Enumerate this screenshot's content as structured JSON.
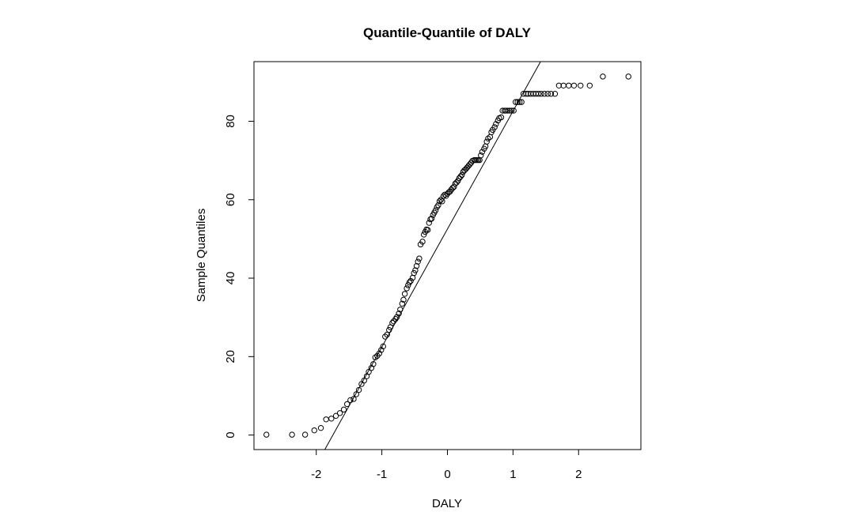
{
  "chart_data": {
    "type": "scatter",
    "title": "Quantile-Quantile of DALY",
    "xlabel": "DALY",
    "ylabel": "Sample Quantiles",
    "xlim": [
      -2.95,
      2.95
    ],
    "ylim": [
      -3.7,
      95.2
    ],
    "xticks": [
      -2,
      -1,
      0,
      1,
      2
    ],
    "xtick_labels": [
      "-2",
      "-1",
      "0",
      "1",
      "2"
    ],
    "yticks": [
      0,
      20,
      40,
      60,
      80
    ],
    "ytick_labels": [
      "0",
      "20",
      "40",
      "60",
      "80"
    ],
    "grid": false,
    "reference_line": {
      "x": [
        -1.87,
        1.42
      ],
      "y": [
        -3.7,
        95.2
      ]
    },
    "series": [
      {
        "marker": "open-circle",
        "color": "#000000",
        "points": [
          [
            -2.76,
            0.1
          ],
          [
            -2.37,
            0.1
          ],
          [
            -2.17,
            0.1
          ],
          [
            -2.03,
            1.2
          ],
          [
            -1.93,
            1.8
          ],
          [
            -1.85,
            4.0
          ],
          [
            -1.77,
            4.2
          ],
          [
            -1.7,
            4.9
          ],
          [
            -1.64,
            5.6
          ],
          [
            -1.58,
            6.5
          ],
          [
            -1.53,
            7.9
          ],
          [
            -1.48,
            8.9
          ],
          [
            -1.43,
            9.2
          ],
          [
            -1.39,
            10.4
          ],
          [
            -1.35,
            11.5
          ],
          [
            -1.31,
            13.0
          ],
          [
            -1.27,
            13.9
          ],
          [
            -1.23,
            15.0
          ],
          [
            -1.2,
            16.1
          ],
          [
            -1.16,
            17.1
          ],
          [
            -1.13,
            18.1
          ],
          [
            -1.1,
            19.8
          ],
          [
            -1.07,
            20.2
          ],
          [
            -1.04,
            20.8
          ],
          [
            -1.01,
            21.7
          ],
          [
            -0.98,
            22.6
          ],
          [
            -0.95,
            25.1
          ],
          [
            -0.92,
            25.6
          ],
          [
            -0.89,
            26.8
          ],
          [
            -0.87,
            27.5
          ],
          [
            -0.84,
            28.6
          ],
          [
            -0.82,
            29.0
          ],
          [
            -0.79,
            29.6
          ],
          [
            -0.77,
            30.1
          ],
          [
            -0.74,
            31.0
          ],
          [
            -0.72,
            32.0
          ],
          [
            -0.69,
            33.5
          ],
          [
            -0.67,
            34.5
          ],
          [
            -0.65,
            36.0
          ],
          [
            -0.62,
            37.4
          ],
          [
            -0.6,
            38.2
          ],
          [
            -0.58,
            38.9
          ],
          [
            -0.56,
            39.3
          ],
          [
            -0.53,
            40.1
          ],
          [
            -0.51,
            41.3
          ],
          [
            -0.49,
            42.0
          ],
          [
            -0.47,
            43.1
          ],
          [
            -0.45,
            44.2
          ],
          [
            -0.43,
            45.0
          ],
          [
            -0.41,
            48.6
          ],
          [
            -0.38,
            49.3
          ],
          [
            -0.36,
            51.1
          ],
          [
            -0.34,
            51.8
          ],
          [
            -0.32,
            52.4
          ],
          [
            -0.3,
            52.3
          ],
          [
            -0.28,
            54.1
          ],
          [
            -0.26,
            55.0
          ],
          [
            -0.24,
            55.2
          ],
          [
            -0.22,
            56.1
          ],
          [
            -0.2,
            56.7
          ],
          [
            -0.18,
            57.3
          ],
          [
            -0.16,
            58.1
          ],
          [
            -0.14,
            58.6
          ],
          [
            -0.12,
            59.6
          ],
          [
            -0.1,
            60.0
          ],
          [
            -0.08,
            59.6
          ],
          [
            -0.06,
            60.9
          ],
          [
            -0.04,
            61.3
          ],
          [
            -0.02,
            61.0
          ],
          [
            0.0,
            61.5
          ],
          [
            0.02,
            61.9
          ],
          [
            0.04,
            62.1
          ],
          [
            0.06,
            62.6
          ],
          [
            0.08,
            63.0
          ],
          [
            0.1,
            63.3
          ],
          [
            0.12,
            64.1
          ],
          [
            0.14,
            64.4
          ],
          [
            0.16,
            64.8
          ],
          [
            0.18,
            65.5
          ],
          [
            0.2,
            65.9
          ],
          [
            0.22,
            66.3
          ],
          [
            0.24,
            67.1
          ],
          [
            0.26,
            67.5
          ],
          [
            0.28,
            67.8
          ],
          [
            0.3,
            68.2
          ],
          [
            0.32,
            68.6
          ],
          [
            0.34,
            69.0
          ],
          [
            0.36,
            69.4
          ],
          [
            0.38,
            69.9
          ],
          [
            0.41,
            70.1
          ],
          [
            0.43,
            70.1
          ],
          [
            0.45,
            70.1
          ],
          [
            0.47,
            70.1
          ],
          [
            0.49,
            70.1
          ],
          [
            0.51,
            71.3
          ],
          [
            0.53,
            72.2
          ],
          [
            0.56,
            73.0
          ],
          [
            0.58,
            73.6
          ],
          [
            0.6,
            74.8
          ],
          [
            0.62,
            75.6
          ],
          [
            0.65,
            76.0
          ],
          [
            0.67,
            77.2
          ],
          [
            0.69,
            77.8
          ],
          [
            0.72,
            78.5
          ],
          [
            0.74,
            79.3
          ],
          [
            0.77,
            80.2
          ],
          [
            0.79,
            80.8
          ],
          [
            0.82,
            81.0
          ],
          [
            0.84,
            82.7
          ],
          [
            0.87,
            82.7
          ],
          [
            0.89,
            82.7
          ],
          [
            0.92,
            82.7
          ],
          [
            0.95,
            82.7
          ],
          [
            0.98,
            82.7
          ],
          [
            1.01,
            82.7
          ],
          [
            1.04,
            84.9
          ],
          [
            1.07,
            84.9
          ],
          [
            1.1,
            84.9
          ],
          [
            1.13,
            84.9
          ],
          [
            1.16,
            87.0
          ],
          [
            1.2,
            87.0
          ],
          [
            1.23,
            87.0
          ],
          [
            1.27,
            87.0
          ],
          [
            1.31,
            87.0
          ],
          [
            1.35,
            87.0
          ],
          [
            1.39,
            87.0
          ],
          [
            1.43,
            87.0
          ],
          [
            1.48,
            87.0
          ],
          [
            1.53,
            87.0
          ],
          [
            1.58,
            87.0
          ],
          [
            1.64,
            87.0
          ],
          [
            1.7,
            89.1
          ],
          [
            1.77,
            89.1
          ],
          [
            1.85,
            89.1
          ],
          [
            1.93,
            89.1
          ],
          [
            2.03,
            89.1
          ],
          [
            2.17,
            89.1
          ],
          [
            2.37,
            91.4
          ],
          [
            2.76,
            91.4
          ]
        ]
      }
    ]
  }
}
